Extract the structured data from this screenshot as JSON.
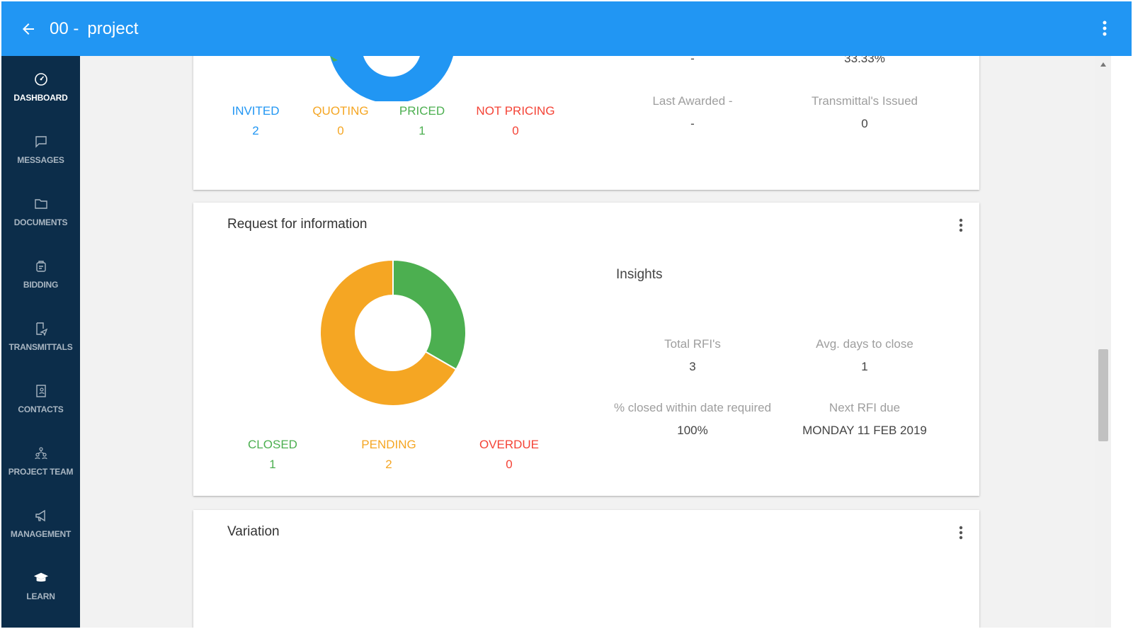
{
  "header": {
    "project_number": "00 -",
    "project_name": "project"
  },
  "sidebar": {
    "items": [
      {
        "label": "DASHBOARD"
      },
      {
        "label": "MESSAGES"
      },
      {
        "label": "DOCUMENTS"
      },
      {
        "label": "BIDDING"
      },
      {
        "label": "TRANSMITTALS"
      },
      {
        "label": "CONTACTS"
      },
      {
        "label": "PROJECT TEAM"
      },
      {
        "label": "MANAGEMENT"
      },
      {
        "label": "LEARN"
      }
    ]
  },
  "bidding_card": {
    "statuses": [
      {
        "label": "INVITED",
        "count": "2"
      },
      {
        "label": "QUOTING",
        "count": "0"
      },
      {
        "label": "PRICED",
        "count": "1"
      },
      {
        "label": "NOT PRICING",
        "count": "0"
      }
    ],
    "insights": {
      "top_left_value": "-",
      "top_right_value": "33.33%",
      "last_awarded_label": "Last Awarded -",
      "last_awarded_value": "-",
      "transmittals_label": "Transmittal's Issued",
      "transmittals_value": "0"
    }
  },
  "rfi_card": {
    "title": "Request for information",
    "insights_heading": "Insights",
    "statuses": [
      {
        "label": "CLOSED",
        "count": "1"
      },
      {
        "label": "PENDING",
        "count": "2"
      },
      {
        "label": "OVERDUE",
        "count": "0"
      }
    ],
    "insights": [
      {
        "label": "Total RFI's",
        "value": "3"
      },
      {
        "label": "Avg. days to close",
        "value": "1"
      },
      {
        "label": "% closed within date required",
        "value": "100%"
      },
      {
        "label": "Next RFI due",
        "value": "MONDAY 11 FEB 2019"
      }
    ],
    "donut": {
      "segments": [
        {
          "status": "CLOSED",
          "value": 1,
          "color": "#4caf50"
        },
        {
          "status": "PENDING",
          "value": 2,
          "color": "#f5a623"
        }
      ]
    }
  },
  "variation_card": {
    "title": "Variation"
  },
  "colors": {
    "header": "#2196f3",
    "sidebar": "#0c2d4a",
    "invited": "#2196f3",
    "quoting": "#f5a623",
    "priced": "#4caf50",
    "not_pricing": "#f44336"
  },
  "icons": [
    "back-arrow-icon",
    "more-vert-icon",
    "dashboard-icon",
    "message-icon",
    "folder-icon",
    "bidding-icon",
    "transmittal-icon",
    "contacts-icon",
    "team-icon",
    "megaphone-icon",
    "graduation-cap-icon"
  ]
}
